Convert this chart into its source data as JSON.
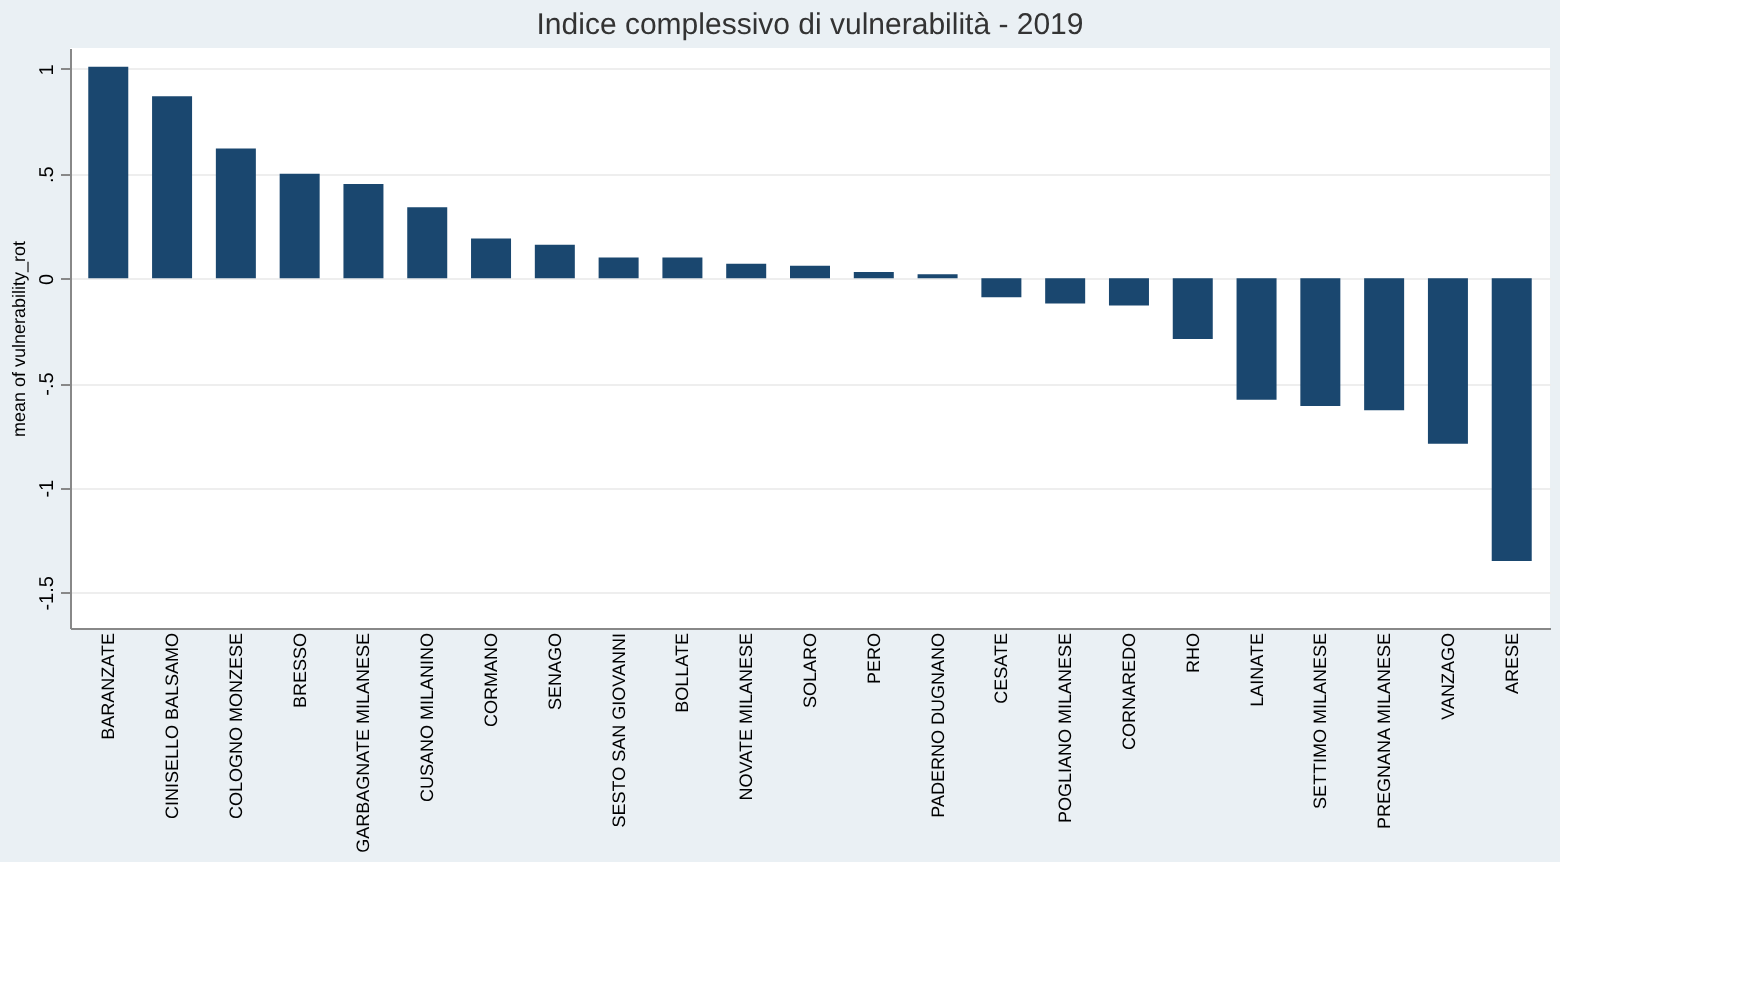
{
  "chart_data": {
    "type": "bar",
    "title": "Indice complessivo di vulnerabilità - 2019",
    "ylabel": "mean of vulnerability_rot",
    "categories": [
      "BARANZATE",
      "CINISELLO BALSAMO",
      "COLOGNO MONZESE",
      "BRESSO",
      "GARBAGNATE MILANESE",
      "CUSANO MILANINO",
      "CORMANO",
      "SENAGO",
      "SESTO SAN GIOVANNI",
      "BOLLATE",
      "NOVATE MILANESE",
      "SOLARO",
      "PERO",
      "PADERNO DUGNANO",
      "CESATE",
      "POGLIANO MILANESE",
      "CORNAREDO",
      "RHO",
      "LAINATE",
      "SETTIMO MILANESE",
      "PREGNANA MILANESE",
      "VANZAGO",
      "ARESE"
    ],
    "values": [
      1.01,
      0.87,
      0.62,
      0.5,
      0.45,
      0.34,
      0.19,
      0.16,
      0.1,
      0.1,
      0.07,
      0.06,
      0.03,
      0.02,
      -0.09,
      -0.12,
      -0.13,
      -0.29,
      -0.58,
      -0.61,
      -0.63,
      -0.79,
      -1.35
    ],
    "color": "#1a476f",
    "ylim": [
      -1.67,
      1.1
    ],
    "yticks": [
      1,
      {
        "value": 0.5,
        "label": ".5"
      },
      0,
      {
        "value": -0.5,
        "label": "-.5"
      },
      -1,
      -1.5
    ],
    "grid": "y"
  }
}
